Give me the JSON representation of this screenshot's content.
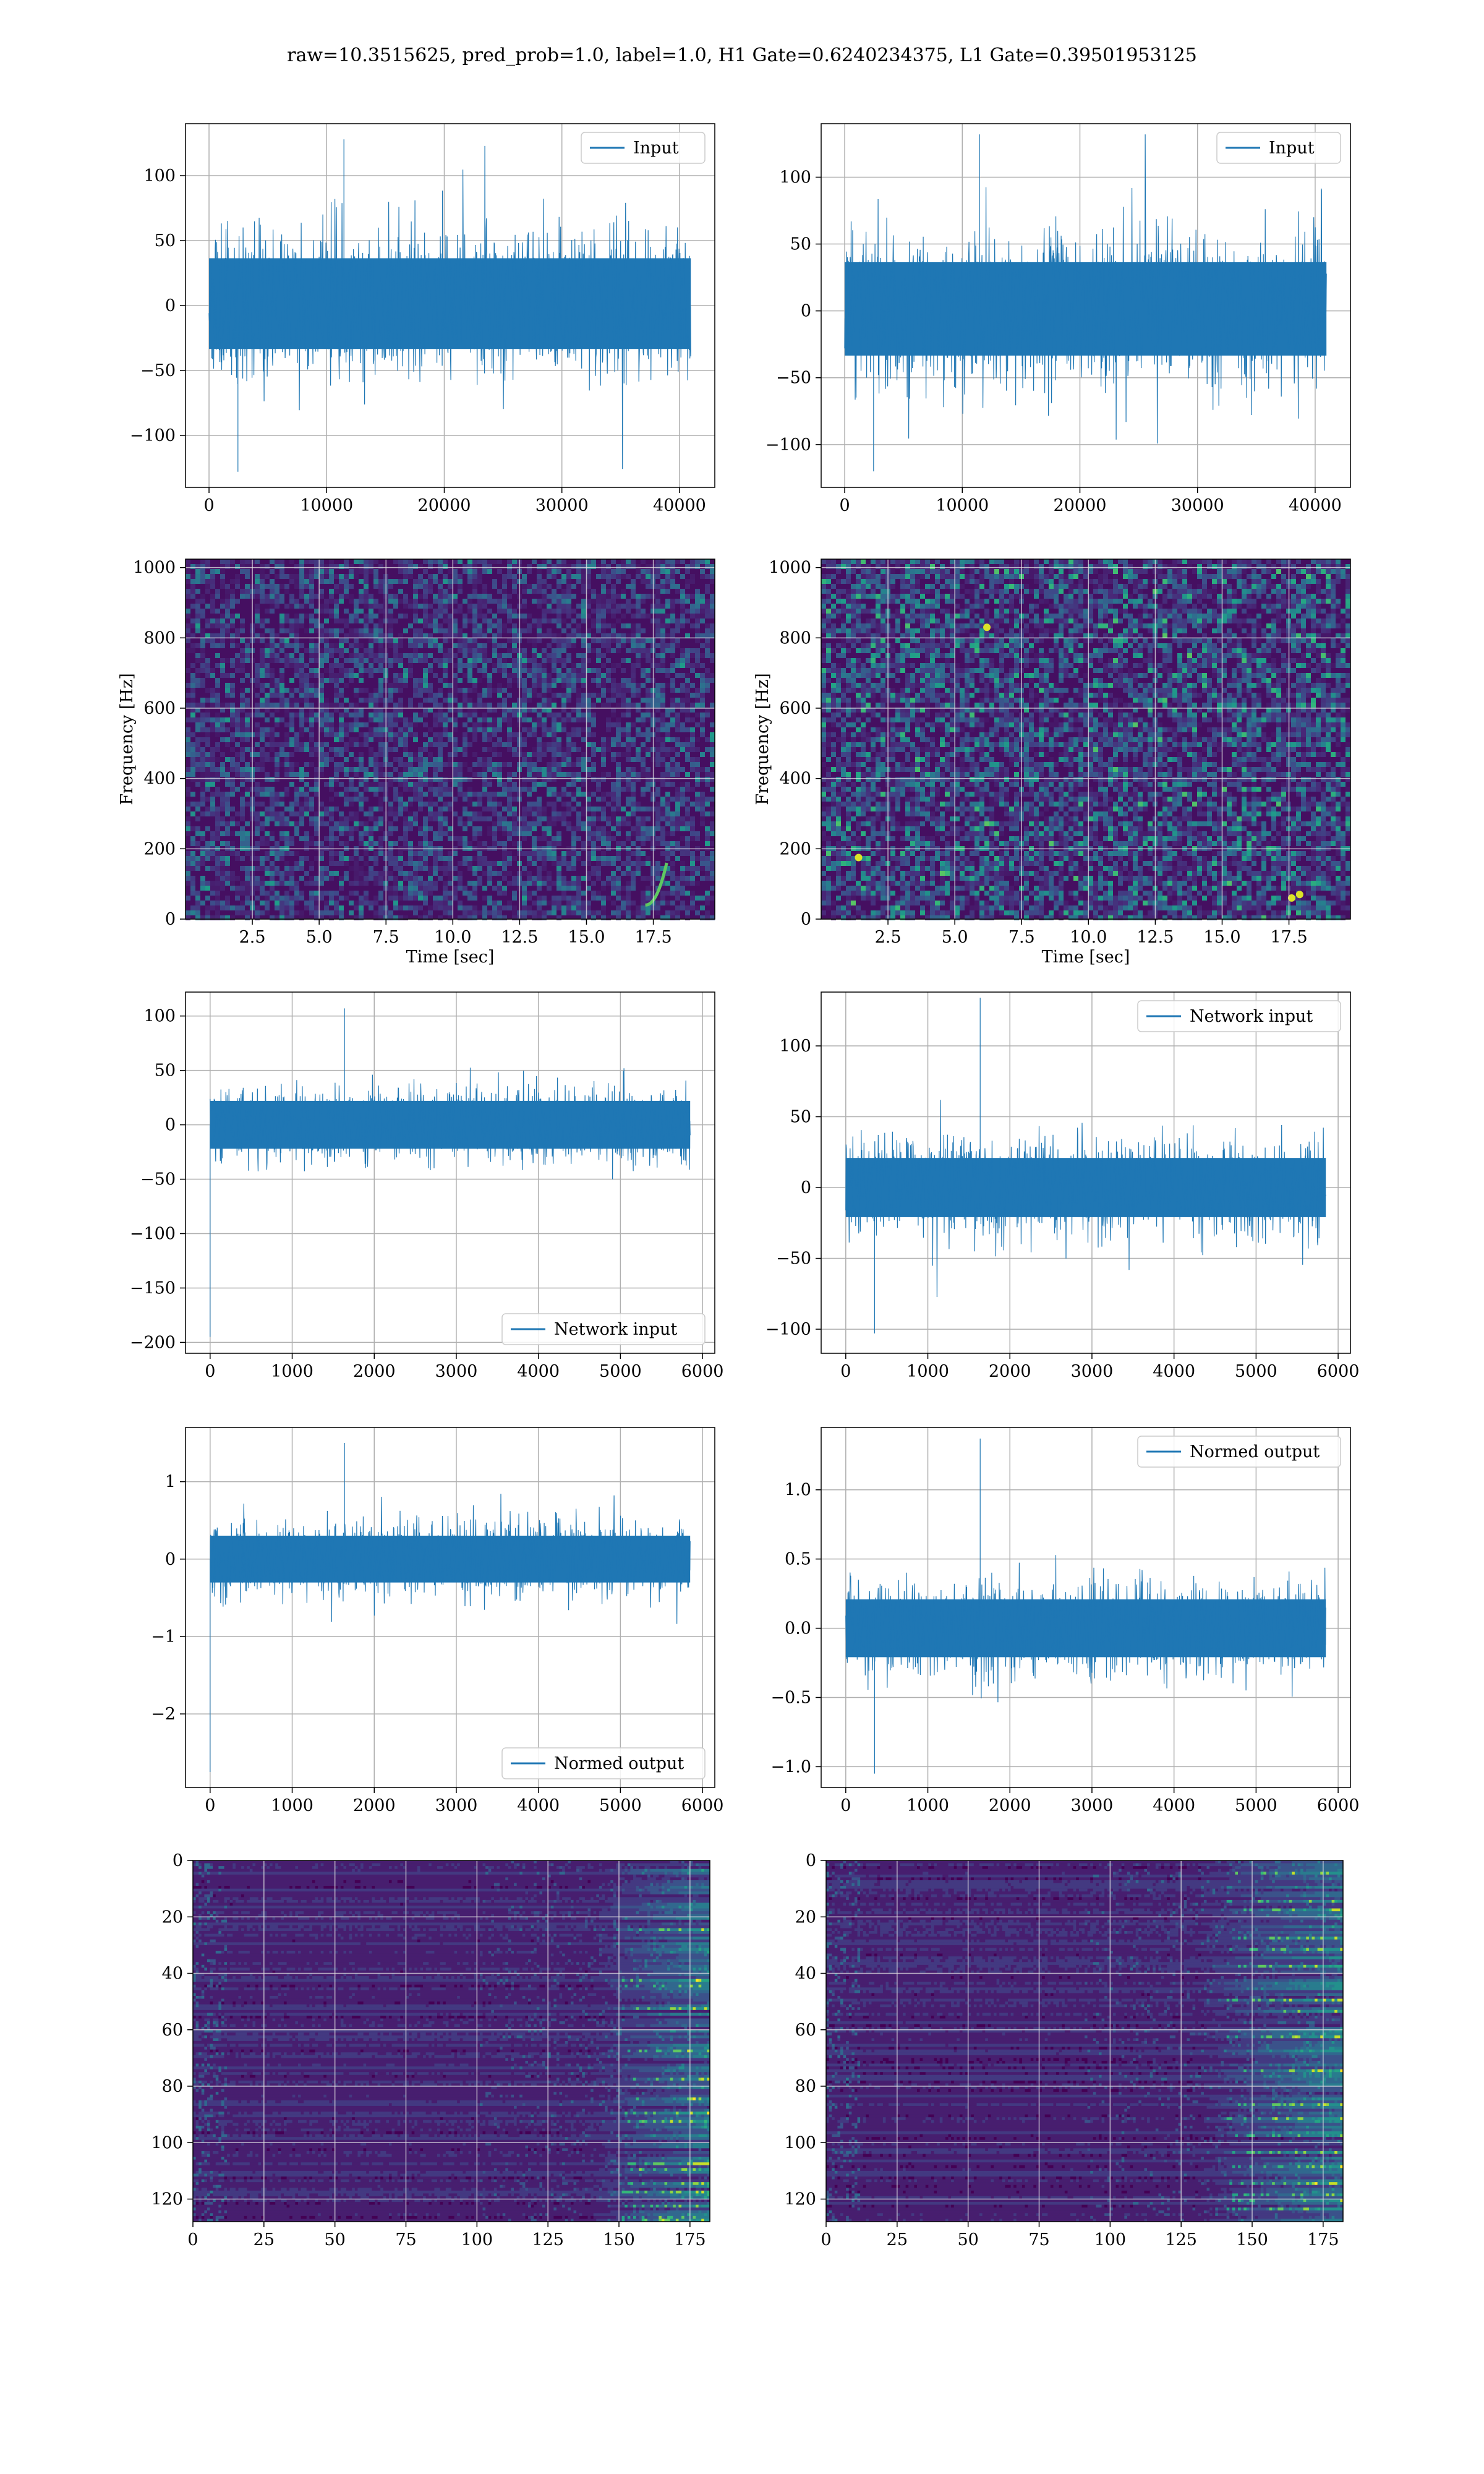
{
  "figure": {
    "suptitle": "raw=10.3515625, pred_prob=1.0, label=1.0, H1 Gate=0.6240234375, L1 Gate=0.39501953125"
  },
  "colors": {
    "series": "#1f77b4",
    "viridis_dark": "#440154",
    "viridis_mid": "#21918c",
    "viridis_bright": "#fde725",
    "grid": "#b0b0b0"
  },
  "chart_data": [
    {
      "id": "h1_input",
      "type": "line",
      "legend": "Input",
      "legend_loc": "upper right",
      "grid": true,
      "xlim": [
        -2000,
        43000
      ],
      "ylim": [
        -140,
        140
      ],
      "xticks": [
        0,
        10000,
        20000,
        30000,
        40000
      ],
      "yticks": [
        -100,
        -50,
        0,
        50,
        100
      ],
      "xtick_labels": [
        "0",
        "10000",
        "20000",
        "30000",
        "40000"
      ],
      "ytick_labels": [
        "−100",
        "−50",
        "0",
        "50",
        "100"
      ],
      "x_extent": [
        0,
        40960
      ],
      "summary": {
        "band": [
          -62,
          65
        ],
        "peak_max": 128,
        "peak_min": -128
      }
    },
    {
      "id": "l1_input",
      "type": "line",
      "legend": "Input",
      "legend_loc": "upper right",
      "grid": true,
      "xlim": [
        -2000,
        43000
      ],
      "ylim": [
        -132,
        140
      ],
      "xticks": [
        0,
        10000,
        20000,
        30000,
        40000
      ],
      "yticks": [
        -100,
        -50,
        0,
        50,
        100
      ],
      "xtick_labels": [
        "0",
        "10000",
        "20000",
        "30000",
        "40000"
      ],
      "ytick_labels": [
        "−100",
        "−50",
        "0",
        "50",
        "100"
      ],
      "x_extent": [
        0,
        40960
      ],
      "summary": {
        "band": [
          -62,
          65
        ],
        "peak_max": 132,
        "peak_min": -120
      }
    },
    {
      "id": "h1_spectrogram",
      "type": "heatmap",
      "colormap": "viridis",
      "grid": true,
      "xlabel": "Time [sec]",
      "ylabel": "Frequency [Hz]",
      "xlim": [
        0,
        19.8
      ],
      "ylim": [
        0,
        1024
      ],
      "xticks": [
        2.5,
        5.0,
        7.5,
        10.0,
        12.5,
        15.0,
        17.5
      ],
      "yticks": [
        0,
        200,
        400,
        600,
        800,
        1000
      ],
      "xtick_labels": [
        "2.5",
        "5.0",
        "7.5",
        "10.0",
        "12.5",
        "15.0",
        "17.5"
      ],
      "ytick_labels": [
        "0",
        "200",
        "400",
        "600",
        "800",
        "1000"
      ],
      "features": [
        {
          "kind": "chirp",
          "t": [
            17.2,
            18.0
          ],
          "f": [
            40,
            160
          ]
        }
      ]
    },
    {
      "id": "l1_spectrogram",
      "type": "heatmap",
      "colormap": "viridis",
      "grid": true,
      "xlabel": "Time [sec]",
      "ylabel": "Frequency [Hz]",
      "xlim": [
        0,
        19.8
      ],
      "ylim": [
        0,
        1024
      ],
      "xticks": [
        2.5,
        5.0,
        7.5,
        10.0,
        12.5,
        15.0,
        17.5
      ],
      "yticks": [
        0,
        200,
        400,
        600,
        800,
        1000
      ],
      "xtick_labels": [
        "2.5",
        "5.0",
        "7.5",
        "10.0",
        "12.5",
        "15.0",
        "17.5"
      ],
      "ytick_labels": [
        "0",
        "200",
        "400",
        "600",
        "800",
        "1000"
      ],
      "features": [
        {
          "kind": "hotspot",
          "t": 6.2,
          "f": 830
        },
        {
          "kind": "hotspot",
          "t": 1.4,
          "f": 175
        },
        {
          "kind": "hotspot",
          "t": 17.6,
          "f": 60
        },
        {
          "kind": "hotspot",
          "t": 17.9,
          "f": 70
        }
      ]
    },
    {
      "id": "h1_network_input",
      "type": "line",
      "legend": "Network input",
      "legend_loc": "lower right",
      "grid": true,
      "xlim": [
        -300,
        6150
      ],
      "ylim": [
        -210,
        122
      ],
      "xticks": [
        0,
        1000,
        2000,
        3000,
        4000,
        5000,
        6000
      ],
      "yticks": [
        -200,
        -150,
        -100,
        -50,
        0,
        50,
        100
      ],
      "xtick_labels": [
        "0",
        "1000",
        "2000",
        "3000",
        "4000",
        "5000",
        "6000"
      ],
      "ytick_labels": [
        "−200",
        "−150",
        "−100",
        "−50",
        "0",
        "50",
        "100"
      ],
      "x_extent": [
        0,
        5850
      ],
      "summary": {
        "band": [
          -40,
          40
        ],
        "peak_max": 107,
        "peak_min": -195
      }
    },
    {
      "id": "l1_network_input",
      "type": "line",
      "legend": "Network input",
      "legend_loc": "upper right",
      "grid": true,
      "xlim": [
        -300,
        6150
      ],
      "ylim": [
        -117,
        138
      ],
      "xticks": [
        0,
        1000,
        2000,
        3000,
        4000,
        5000,
        6000
      ],
      "yticks": [
        -100,
        -50,
        0,
        50,
        100
      ],
      "xtick_labels": [
        "0",
        "1000",
        "2000",
        "3000",
        "4000",
        "5000",
        "6000"
      ],
      "ytick_labels": [
        "−100",
        "−50",
        "0",
        "50",
        "100"
      ],
      "x_extent": [
        0,
        5850
      ],
      "summary": {
        "band": [
          -38,
          38
        ],
        "peak_max": 134,
        "peak_min": -103
      }
    },
    {
      "id": "h1_normed_output",
      "type": "line",
      "legend": "Normed output",
      "legend_loc": "lower right",
      "grid": true,
      "xlim": [
        -300,
        6150
      ],
      "ylim": [
        -2.95,
        1.7
      ],
      "xticks": [
        0,
        1000,
        2000,
        3000,
        4000,
        5000,
        6000
      ],
      "yticks": [
        -2,
        -1,
        0,
        1
      ],
      "xtick_labels": [
        "0",
        "1000",
        "2000",
        "3000",
        "4000",
        "5000",
        "6000"
      ],
      "ytick_labels": [
        "−2",
        "−1",
        "0",
        "1"
      ],
      "x_extent": [
        0,
        5850
      ],
      "summary": {
        "band": [
          -0.55,
          0.55
        ],
        "peak_max": 1.5,
        "peak_min": -2.75
      }
    },
    {
      "id": "l1_normed_output",
      "type": "line",
      "legend": "Normed output",
      "legend_loc": "upper right",
      "grid": true,
      "xlim": [
        -300,
        6150
      ],
      "ylim": [
        -1.15,
        1.45
      ],
      "xticks": [
        0,
        1000,
        2000,
        3000,
        4000,
        5000,
        6000
      ],
      "yticks": [
        -1.0,
        -0.5,
        0.0,
        0.5,
        1.0
      ],
      "xtick_labels": [
        "0",
        "1000",
        "2000",
        "3000",
        "4000",
        "5000",
        "6000"
      ],
      "ytick_labels": [
        "−1.0",
        "−0.5",
        "0.0",
        "0.5",
        "1.0"
      ],
      "x_extent": [
        0,
        5850
      ],
      "summary": {
        "band": [
          -0.38,
          0.38
        ],
        "peak_max": 1.37,
        "peak_min": -1.05
      }
    },
    {
      "id": "h1_feature_map",
      "type": "heatmap",
      "colormap": "viridis",
      "grid": true,
      "xlim": [
        0,
        182
      ],
      "ylim": [
        128,
        0
      ],
      "xticks": [
        0,
        25,
        50,
        75,
        100,
        125,
        150,
        175
      ],
      "yticks": [
        0,
        20,
        40,
        60,
        80,
        100,
        120
      ],
      "xtick_labels": [
        "0",
        "25",
        "50",
        "75",
        "100",
        "125",
        "150",
        "175"
      ],
      "ytick_labels": [
        "0",
        "20",
        "40",
        "60",
        "80",
        "100",
        "120"
      ],
      "rows": 128,
      "cols": 182,
      "activation_center": [
        140,
        182
      ]
    },
    {
      "id": "l1_feature_map",
      "type": "heatmap",
      "colormap": "viridis",
      "grid": true,
      "xlim": [
        0,
        182
      ],
      "ylim": [
        128,
        0
      ],
      "xticks": [
        0,
        25,
        50,
        75,
        100,
        125,
        150,
        175
      ],
      "yticks": [
        0,
        20,
        40,
        60,
        80,
        100,
        120
      ],
      "xtick_labels": [
        "0",
        "25",
        "50",
        "75",
        "100",
        "125",
        "150",
        "175"
      ],
      "ytick_labels": [
        "0",
        "20",
        "40",
        "60",
        "80",
        "100",
        "120"
      ],
      "rows": 128,
      "cols": 182,
      "activation_center": [
        130,
        182
      ]
    }
  ]
}
